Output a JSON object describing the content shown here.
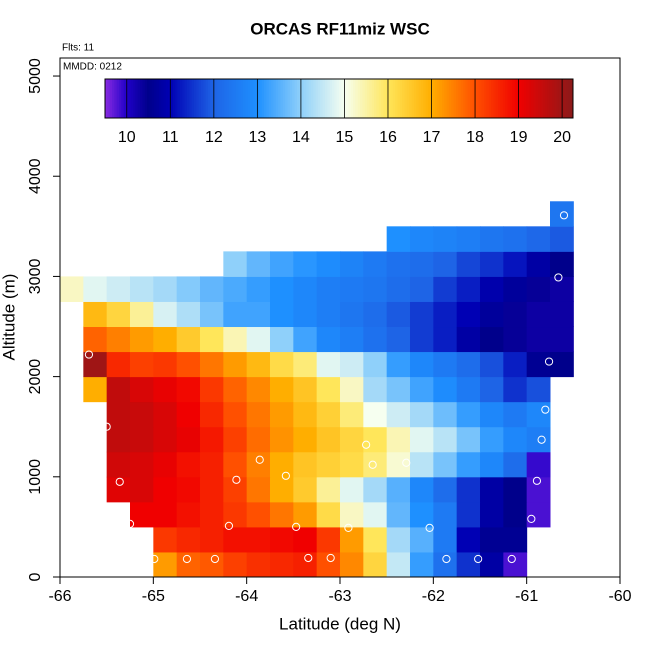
{
  "chart_data": {
    "type": "heatmap",
    "title": "ORCAS RF11miz WSC",
    "annotations": [
      "Flts: 11",
      "MMDD: 0212"
    ],
    "x_label": "Latitude (deg N)",
    "y_label": "Altitude (m)",
    "xlim": [
      -66,
      -60
    ],
    "xticks": [
      -66,
      -65,
      -64,
      -63,
      -62,
      -61,
      -60
    ],
    "ylim": [
      0,
      5180
    ],
    "yticks": [
      0,
      1000,
      2000,
      3000,
      4000,
      5000
    ],
    "x_edges": [
      -66,
      -65.75,
      -65.5,
      -65.25,
      -65,
      -64.75,
      -64.5,
      -64.25,
      -64,
      -63.75,
      -63.5,
      -63.25,
      -63,
      -62.75,
      -62.5,
      -62.25,
      -62,
      -61.75,
      -61.5,
      -61.25,
      -61,
      -60.75,
      -60.5
    ],
    "y_edges": [
      0,
      250,
      500,
      750,
      1000,
      1250,
      1500,
      1750,
      2000,
      2250,
      2500,
      2750,
      3000,
      3250,
      3500,
      3750
    ],
    "values": [
      [
        null,
        null,
        null,
        null,
        17.2,
        17.8,
        17.9,
        18.2,
        18.4,
        18.5,
        18.6,
        18.0,
        17.4,
        16.3,
        14.5,
        13.2,
        12.3,
        11.5,
        10.8,
        9.8,
        null,
        null
      ],
      [
        null,
        null,
        null,
        null,
        18.3,
        18.5,
        18.6,
        18.8,
        18.8,
        18.9,
        19.0,
        18.3,
        17.2,
        16.0,
        14.2,
        13.5,
        12.5,
        11.0,
        10.6,
        10.6,
        null,
        null
      ],
      [
        null,
        null,
        null,
        19.0,
        19.0,
        18.8,
        18.6,
        18.3,
        18.0,
        17.6,
        17.2,
        16.2,
        15.3,
        14.8,
        13.6,
        13.0,
        12.5,
        11.5,
        10.8,
        10.5,
        9.8,
        null
      ],
      [
        null,
        null,
        19.2,
        19.3,
        19.0,
        18.9,
        18.6,
        18.2,
        17.6,
        17.0,
        16.5,
        15.6,
        14.8,
        14.2,
        13.5,
        12.8,
        12.2,
        11.5,
        10.8,
        10.5,
        9.8,
        null
      ],
      [
        null,
        null,
        19.4,
        19.3,
        19.1,
        18.8,
        18.6,
        18.0,
        17.5,
        17.0,
        16.6,
        16.4,
        16.2,
        15.8,
        15.2,
        14.4,
        13.8,
        13.2,
        12.8,
        12.2,
        9.9,
        null
      ],
      [
        null,
        null,
        19.6,
        19.5,
        19.3,
        19.1,
        18.7,
        18.2,
        17.7,
        17.3,
        17.0,
        16.6,
        16.3,
        16.0,
        15.4,
        14.8,
        14.4,
        13.8,
        13.2,
        12.8,
        12.6,
        null
      ],
      [
        null,
        null,
        19.6,
        19.5,
        19.3,
        19.0,
        18.5,
        18.0,
        17.6,
        17.2,
        16.8,
        16.4,
        15.8,
        15.0,
        14.6,
        14.2,
        13.7,
        13.2,
        12.8,
        12.5,
        12.8,
        null
      ],
      [
        null,
        17.0,
        19.6,
        19.3,
        19.1,
        18.9,
        18.3,
        17.8,
        17.4,
        17.0,
        16.6,
        16.0,
        15.3,
        14.2,
        13.8,
        13.3,
        12.9,
        12.5,
        12.0,
        11.5,
        11.8,
        null
      ],
      [
        null,
        20.0,
        18.5,
        18.2,
        18.3,
        18.0,
        17.6,
        17.2,
        16.8,
        16.2,
        15.8,
        14.8,
        14.6,
        14.0,
        13.2,
        12.8,
        12.5,
        12.2,
        11.8,
        11.3,
        10.6,
        10.5
      ],
      [
        null,
        17.8,
        17.5,
        17.2,
        17.0,
        16.5,
        16.0,
        15.4,
        14.8,
        14.0,
        13.3,
        12.8,
        12.6,
        12.3,
        12.0,
        11.6,
        11.3,
        10.8,
        10.5,
        10.4,
        10.3,
        10.3
      ],
      [
        null,
        16.8,
        16.3,
        15.6,
        14.7,
        14.3,
        13.8,
        13.3,
        13.3,
        13.0,
        12.8,
        12.6,
        12.4,
        12.2,
        11.9,
        11.6,
        11.3,
        11.0,
        10.7,
        10.4,
        10.3,
        10.3
      ],
      [
        15.3,
        14.8,
        14.6,
        14.4,
        14.2,
        13.9,
        13.6,
        13.4,
        13.2,
        13.0,
        12.8,
        12.6,
        12.5,
        12.4,
        12.2,
        12.0,
        11.6,
        11.3,
        10.9,
        10.7,
        10.4,
        10.3
      ],
      [
        null,
        null,
        null,
        null,
        null,
        null,
        null,
        14.0,
        13.6,
        13.3,
        13.1,
        12.9,
        12.7,
        12.5,
        12.3,
        12.2,
        12.0,
        11.7,
        11.5,
        11.2,
        10.8,
        10.5
      ],
      [
        null,
        null,
        null,
        null,
        null,
        null,
        null,
        null,
        null,
        null,
        null,
        null,
        null,
        null,
        13.0,
        12.8,
        12.7,
        12.6,
        12.4,
        12.3,
        12.1,
        11.9
      ],
      [
        null,
        null,
        null,
        null,
        null,
        null,
        null,
        null,
        null,
        null,
        null,
        null,
        null,
        null,
        null,
        null,
        null,
        null,
        null,
        null,
        null,
        12.4
      ]
    ],
    "points": {
      "color": "#ffffff",
      "x": [
        -65.69,
        -65.5,
        -65.36,
        -65.25,
        -64.99,
        -64.64,
        -64.34,
        -64.11,
        -64.19,
        -63.86,
        -63.58,
        -63.47,
        -63.34,
        -63.1,
        -62.91,
        -62.72,
        -62.65,
        -62.29,
        -62.04,
        -61.86,
        -61.52,
        -61.16,
        -60.95,
        -60.89,
        -60.84,
        -60.8,
        -60.76,
        -60.66,
        -60.6
      ],
      "y": [
        2220,
        1500,
        950,
        530,
        180,
        180,
        180,
        970,
        510,
        1170,
        1010,
        500,
        190,
        190,
        490,
        1320,
        1120,
        1140,
        490,
        180,
        180,
        180,
        580,
        960,
        1370,
        1670,
        2150,
        2990,
        3610
      ]
    },
    "colorbar": {
      "lim": [
        9.5,
        20.25
      ],
      "ticks": [
        10,
        11,
        12,
        13,
        14,
        15,
        16,
        17,
        18,
        19,
        20
      ],
      "colors": [
        [
          9.5,
          "#8a2be2"
        ],
        [
          10,
          "#2000c8"
        ],
        [
          10.5,
          "#00008b"
        ],
        [
          11,
          "#0000b4"
        ],
        [
          12,
          "#1e64e6"
        ],
        [
          13,
          "#1e90ff"
        ],
        [
          14,
          "#8fd0fa"
        ],
        [
          15,
          "#f6fff0"
        ],
        [
          16,
          "#ffe65a"
        ],
        [
          17,
          "#ffae00"
        ],
        [
          18,
          "#ff5000"
        ],
        [
          19,
          "#f00000"
        ],
        [
          20.25,
          "#8b1a1a"
        ]
      ]
    }
  }
}
